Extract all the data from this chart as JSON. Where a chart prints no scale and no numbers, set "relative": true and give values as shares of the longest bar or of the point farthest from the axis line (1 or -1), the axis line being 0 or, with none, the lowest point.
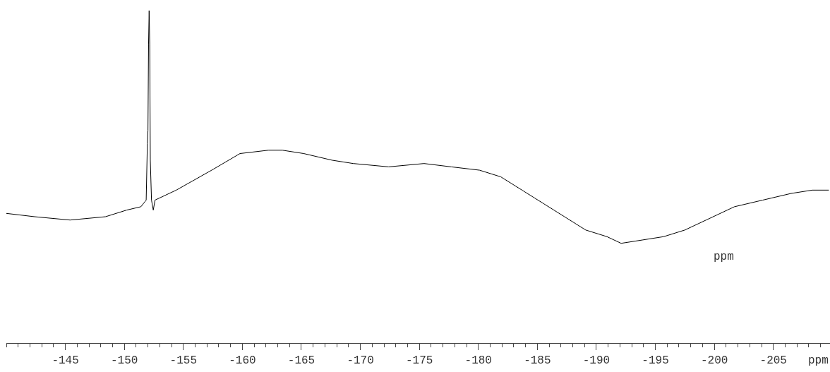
{
  "chart_data": {
    "type": "line",
    "relative": true,
    "xlabel": "ppm",
    "annotations": [
      "ppm"
    ],
    "xlim": [
      -140,
      -209.8
    ],
    "xticks": [
      {
        "value": -140,
        "label": null
      },
      {
        "value": -141,
        "label": null
      },
      {
        "value": -142,
        "label": null
      },
      {
        "value": -143,
        "label": null
      },
      {
        "value": -144,
        "label": null
      },
      -145,
      {
        "value": -146,
        "label": null
      },
      {
        "value": -147,
        "label": null
      },
      {
        "value": -148,
        "label": null
      },
      {
        "value": -149,
        "label": null
      },
      -150,
      {
        "value": -151,
        "label": null
      },
      {
        "value": -152,
        "label": null
      },
      {
        "value": -153,
        "label": null
      },
      {
        "value": -154,
        "label": null
      },
      -155,
      {
        "value": -156,
        "label": null
      },
      {
        "value": -157,
        "label": null
      },
      {
        "value": -158,
        "label": null
      },
      {
        "value": -159,
        "label": null
      },
      -160,
      {
        "value": -161,
        "label": null
      },
      {
        "value": -162,
        "label": null
      },
      {
        "value": -163,
        "label": null
      },
      {
        "value": -164,
        "label": null
      },
      -165,
      {
        "value": -166,
        "label": null
      },
      {
        "value": -167,
        "label": null
      },
      {
        "value": -168,
        "label": null
      },
      {
        "value": -169,
        "label": null
      },
      -170,
      {
        "value": -171,
        "label": null
      },
      {
        "value": -172,
        "label": null
      },
      {
        "value": -173,
        "label": null
      },
      {
        "value": -174,
        "label": null
      },
      -175,
      {
        "value": -176,
        "label": null
      },
      {
        "value": -177,
        "label": null
      },
      {
        "value": -178,
        "label": null
      },
      {
        "value": -179,
        "label": null
      },
      -180,
      {
        "value": -181,
        "label": null
      },
      {
        "value": -182,
        "label": null
      },
      {
        "value": -183,
        "label": null
      },
      {
        "value": -184,
        "label": null
      },
      -185,
      {
        "value": -186,
        "label": null
      },
      {
        "value": -187,
        "label": null
      },
      {
        "value": -188,
        "label": null
      },
      {
        "value": -189,
        "label": null
      },
      -190,
      {
        "value": -191,
        "label": null
      },
      {
        "value": -192,
        "label": null
      },
      {
        "value": -193,
        "label": null
      },
      {
        "value": -194,
        "label": null
      },
      -195,
      {
        "value": -196,
        "label": null
      },
      {
        "value": -197,
        "label": null
      },
      {
        "value": -198,
        "label": null
      },
      {
        "value": -199,
        "label": null
      },
      -200,
      {
        "value": -201,
        "label": null
      },
      {
        "value": -202,
        "label": null
      },
      {
        "value": -203,
        "label": null
      },
      {
        "value": -204,
        "label": null
      },
      -205,
      {
        "value": -206,
        "label": null
      },
      {
        "value": -207,
        "label": null
      },
      {
        "value": -208,
        "label": null
      },
      {
        "value": -209,
        "label": null
      }
    ],
    "x": [
      -140.0,
      -142.4,
      -145.4,
      -148.4,
      -150.2,
      -151.4,
      -151.85,
      -151.95,
      -152.0,
      -152.05,
      -152.1,
      -152.15,
      -152.2,
      -152.3,
      -152.45,
      -152.6,
      -154.4,
      -157.4,
      -159.8,
      -162.2,
      -163.4,
      -165.2,
      -167.6,
      -169.4,
      -172.4,
      -175.4,
      -177.7,
      -180.1,
      -181.9,
      -183.7,
      -185.5,
      -187.3,
      -189.1,
      -190.9,
      -192.1,
      -193.9,
      -195.7,
      -197.5,
      -199.3,
      -201.7,
      -204.1,
      -206.5,
      -208.3,
      -209.7
    ],
    "series": [
      {
        "color": "#000000",
        "values": [
          0.39,
          0.38,
          0.37,
          0.38,
          0.4,
          0.41,
          0.43,
          0.6,
          0.64,
          0.9,
          1.0,
          0.9,
          0.55,
          0.43,
          0.4,
          0.43,
          0.46,
          0.52,
          0.57,
          0.58,
          0.58,
          0.57,
          0.55,
          0.54,
          0.53,
          0.54,
          0.53,
          0.52,
          0.5,
          0.46,
          0.42,
          0.38,
          0.34,
          0.32,
          0.3,
          0.31,
          0.32,
          0.34,
          0.37,
          0.41,
          0.43,
          0.45,
          0.46,
          0.46
        ]
      }
    ],
    "marker": "none",
    "line_style": "solid"
  }
}
